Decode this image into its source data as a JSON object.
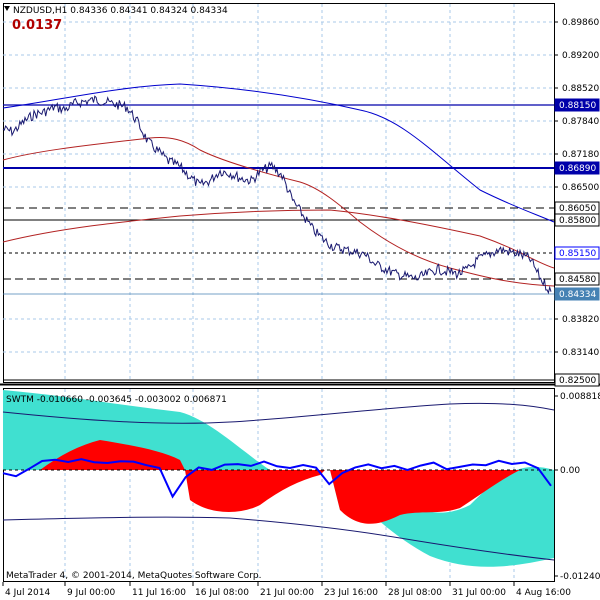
{
  "header": {
    "symbol_line": "NZDUSD,H1  0.84336 0.84341 0.84324 0.84334",
    "spread_value": "0.0137",
    "spread_color": "#b00000"
  },
  "indicator": {
    "header": "SWTM -0.010660 -0.003645 -0.003002 0.006871",
    "copyright": "MetaTrader 4, © 2001-2014, MetaQuotes Software Corp.",
    "colors": {
      "cyan_fill": "#40e0d0",
      "red_fill": "#ff0000",
      "line": "#0000ff",
      "band": "#191970"
    }
  },
  "colors": {
    "price": "#191970",
    "ma_fast": "#b22222",
    "ma_slow": "#0000cd",
    "level_line": "#0000aa",
    "grid": "#a8c8e8",
    "current_price_bg": "#4682b4"
  },
  "price_axis": {
    "ticks": [
      "0.89860",
      "0.89200",
      "0.88520",
      "0.87840",
      "0.87180",
      "0.86500",
      "0.83820",
      "0.83140"
    ],
    "level_labels": [
      {
        "value": "0.88150",
        "style": "solid"
      },
      {
        "value": "0.86890",
        "style": "solid"
      },
      {
        "value": "0.86050",
        "style": "dash"
      },
      {
        "value": "0.85800",
        "style": "solid"
      },
      {
        "value": "0.85150",
        "style": "dash"
      },
      {
        "value": "0.84580",
        "style": "dash"
      },
      {
        "value": "0.84334",
        "style": "current"
      },
      {
        "value": "0.82500",
        "style": "solid"
      }
    ],
    "indicator_ticks": [
      "0.008818",
      "0.00",
      "-0.012406"
    ]
  },
  "time_axis": {
    "labels": [
      "4 Jul 2014",
      "9 Jul 00:00",
      "11 Jul 16:00",
      "16 Jul 08:00",
      "21 Jul 00:00",
      "23 Jul 16:00",
      "28 Jul 08:00",
      "31 Jul 00:00",
      "4 Aug 16:00"
    ]
  },
  "chart_data": {
    "type": "line",
    "title": "NZDUSD,H1",
    "x_labels": [
      "4 Jul 2014",
      "9 Jul 00:00",
      "11 Jul 16:00",
      "16 Jul 08:00",
      "21 Jul 00:00",
      "23 Jul 16:00",
      "28 Jul 08:00",
      "31 Jul 00:00",
      "4 Aug 16:00"
    ],
    "ylim": [
      0.825,
      0.902
    ],
    "series": [
      {
        "values": [
          0.8765,
          0.876,
          0.878,
          0.8795,
          0.88,
          0.881,
          0.8805,
          0.8818,
          0.8822,
          0.8825,
          0.882,
          0.8815,
          0.881,
          0.878,
          0.874,
          0.872,
          0.87,
          0.869,
          0.867,
          0.865,
          0.866,
          0.868,
          0.8675,
          0.8665,
          0.866,
          0.868,
          0.869,
          0.867,
          0.862,
          0.859,
          0.856,
          0.854,
          0.8525,
          0.852,
          0.8515,
          0.851,
          0.849,
          0.848,
          0.847,
          0.8465,
          0.846,
          0.847,
          0.848,
          0.8475,
          0.847,
          0.848,
          0.85,
          0.851,
          0.852,
          0.8515,
          0.851,
          0.85,
          0.846,
          0.8434
        ]
      },
      {
        "values": [
          0.8755,
          0.877,
          0.8785,
          0.8795,
          0.8802,
          0.879,
          0.876,
          0.872,
          0.87,
          0.868,
          0.867,
          0.866,
          0.865,
          0.862,
          0.859,
          0.856,
          0.854,
          0.852,
          0.85,
          0.849,
          0.8475,
          0.8465
        ]
      },
      {
        "values": [
          0.874,
          0.877,
          0.88,
          0.883,
          0.8845,
          0.885,
          0.8845,
          0.8835,
          0.8825,
          0.8815,
          0.88,
          0.878,
          0.876,
          0.874,
          0.871,
          0.868,
          0.866,
          0.864,
          0.8625,
          0.861,
          0.86
        ]
      }
    ],
    "indicator_ylim": [
      -0.0125,
      0.009
    ],
    "grid": true,
    "legend": "none"
  }
}
